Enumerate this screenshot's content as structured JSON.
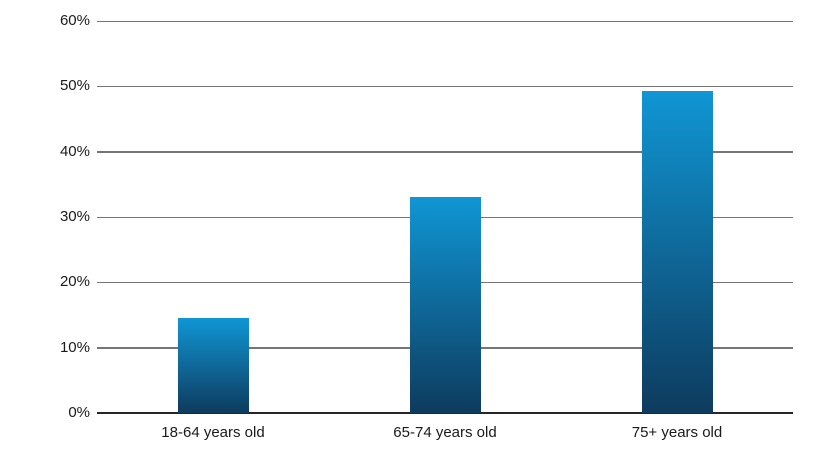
{
  "chart_data": {
    "type": "bar",
    "title": "",
    "subtitle": "",
    "xlabel": "",
    "ylabel": "",
    "categories": [
      "18-64 years old",
      "65-74 years old",
      "75+ years old"
    ],
    "values": [
      14.6,
      33,
      49.3
    ],
    "series": [
      {
        "name": "percentage",
        "values": [
          14.6,
          33,
          49.3
        ]
      }
    ],
    "ylim": [
      0,
      60
    ],
    "ytick_interval": 10,
    "ytick_labels": [
      "0%",
      "10%",
      "20%",
      "30%",
      "40%",
      "50%",
      "60%"
    ],
    "grid": "horizontal",
    "legend": "none",
    "colors": {
      "background": "#ffffff",
      "bar_gradient_top": "#1096d4",
      "bar_gradient_bottom": "#0e3b5e",
      "gridline": "#757575",
      "axis_line": "#262626",
      "label_text": "#1a1a1a"
    }
  }
}
